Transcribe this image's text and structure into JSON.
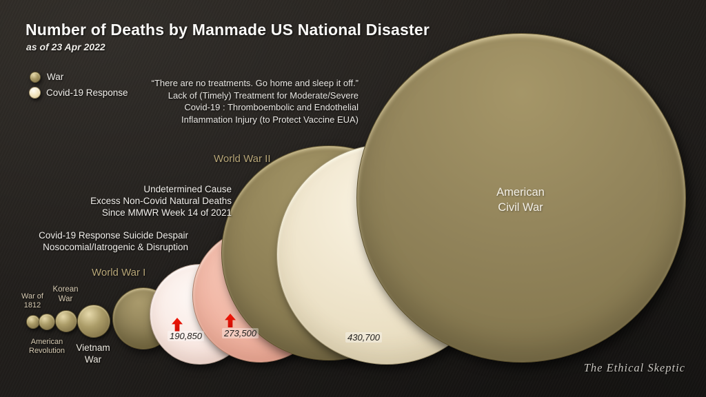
{
  "header": {
    "title": "Number of Deaths by Manmade US National Disaster",
    "subtitle": "as of 23 Apr 2022"
  },
  "legend": {
    "war": "War",
    "covid": "Covid-19 Response"
  },
  "quote": [
    "“There are no treatments. Go home and sleep it off.”",
    "Lack of (Timely) Treatment for Moderate/Severe",
    "Covid-19 : Thromboembolic and Endothelial",
    "Inflammation Injury (to Protect Vaccine EUA)"
  ],
  "labels": {
    "ww2": "World War II",
    "undetermined": [
      "Undetermined Cause",
      "Excess Non-Covid Natural Deaths",
      "Since MMWR Week 14 of 2021"
    ],
    "covid_response": [
      "Covid-19 Response Suicide Despair",
      "Nosocomial/Iatrogenic & Disruption"
    ],
    "ww1": "World War I",
    "war1812": [
      "War of",
      "1812"
    ],
    "korean": [
      "Korean",
      "War"
    ],
    "amrev": [
      "American",
      "Revolution"
    ],
    "vietnam": [
      "Vietnam",
      "War"
    ],
    "acw": [
      "American",
      "Civil War"
    ]
  },
  "values": {
    "pink": "190,850",
    "salmon": "273,500",
    "cream": "430,700"
  },
  "watermark": "The Ethical Skeptic",
  "chart_data": {
    "type": "bubble",
    "title": "Number of Deaths by Manmade US National Disaster",
    "subtitle": "as of 23 Apr 2022",
    "legend_entries": [
      {
        "label": "War",
        "color": "#8d7f55"
      },
      {
        "label": "Covid-19 Response",
        "color": "#ece1c6"
      }
    ],
    "bubbles": [
      {
        "label": "War of 1812",
        "category": "War",
        "color": "#9a8b5e"
      },
      {
        "label": "American Revolution",
        "category": "War",
        "color": "#9a8b5e"
      },
      {
        "label": "Korean War",
        "category": "War",
        "color": "#9a8b5e"
      },
      {
        "label": "Vietnam War",
        "category": "War",
        "color": "#9a8b5e"
      },
      {
        "label": "World War I",
        "category": "War",
        "color": "#9a8b5e"
      },
      {
        "label": "Covid-19 Response Suicide Despair Nosocomial/Iatrogenic & Disruption",
        "category": "Covid-19 Response",
        "value": 190850,
        "value_label": "190,850",
        "trend_marker": "red-up-arrow",
        "color": "#f9e9e3"
      },
      {
        "label": "Undetermined Cause Excess Non-Covid Natural Deaths Since MMWR Week 14 of 2021",
        "category": "Covid-19 Response",
        "value": 273500,
        "value_label": "273,500",
        "trend_marker": "red-up-arrow",
        "color": "#f0b4a2"
      },
      {
        "label": "World War II",
        "category": "War",
        "color": "#8c7e54"
      },
      {
        "label": "Lack of (Timely) Treatment for Moderate/Severe Covid-19 : Thromboembolic and Endothelial Inflammation Injury (to Protect Vaccine EUA)",
        "category": "Covid-19 Response",
        "value": 430700,
        "value_label": "430,700",
        "color": "#ece1c6"
      },
      {
        "label": "American Civil War",
        "category": "War",
        "color": "#91835a"
      }
    ],
    "layout_hints": {
      "background": "#211e1b",
      "size_encoding": "circle size proportional to deaths",
      "arrow_color": "#e41105",
      "gold_label_color": "#b6a577",
      "legend_position": "top-left",
      "watermark": "The Ethical Skeptic"
    }
  }
}
